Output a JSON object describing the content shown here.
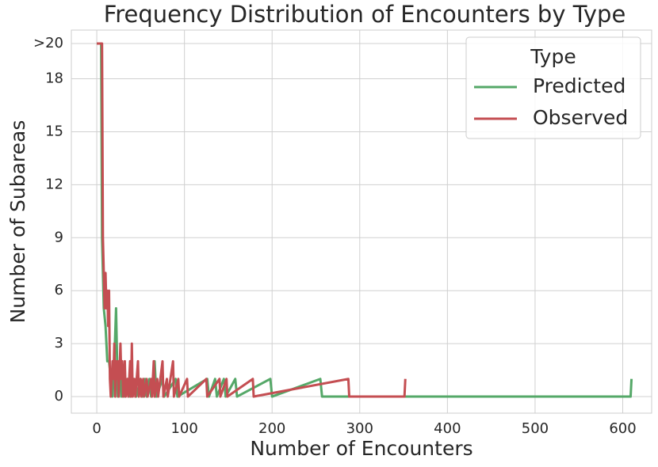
{
  "chart_data": {
    "type": "line",
    "title": "Frequency Distribution of Encounters by Type",
    "xlabel": "Number of Encounters",
    "ylabel": "Number of Subareas",
    "xlim": [
      -29,
      633
    ],
    "ylim": [
      -0.94,
      20.76
    ],
    "xticks": [
      0,
      100,
      200,
      300,
      400,
      500,
      600
    ],
    "yticks": [
      0,
      3,
      6,
      9,
      12,
      15,
      18,
      {
        "value": 20,
        "label": ">20"
      }
    ],
    "grid": true,
    "legend_title": "Type",
    "legend_position": "upper right",
    "series": [
      {
        "name": "Predicted",
        "color": "#55a868",
        "x": [
          0,
          5,
          6,
          8,
          10,
          12,
          14,
          16,
          18,
          20,
          22,
          24,
          26,
          28,
          30,
          32,
          35,
          38,
          42,
          45,
          50,
          52,
          55,
          57,
          60,
          62,
          66,
          68,
          75,
          77,
          90,
          92,
          126,
          128,
          135,
          137,
          145,
          147,
          158,
          160,
          198,
          200,
          255,
          257,
          609,
          610
        ],
        "values": [
          20,
          20,
          9,
          5,
          4,
          2,
          2,
          1,
          0,
          2,
          5,
          0,
          2,
          0,
          1,
          0,
          1,
          0,
          1,
          0,
          1,
          0,
          1,
          0,
          1,
          0,
          2,
          0,
          1,
          0,
          1,
          0,
          1,
          0,
          1,
          0,
          1,
          0,
          1,
          0,
          1,
          0,
          1,
          0,
          0,
          1
        ]
      },
      {
        "name": "Observed",
        "color": "#c44e52",
        "x": [
          0,
          6,
          7,
          9,
          10,
          11,
          12,
          13,
          14,
          15,
          16,
          18,
          19,
          20,
          21,
          22,
          23,
          24,
          25,
          27,
          28,
          29,
          30,
          32,
          33,
          35,
          36,
          38,
          39,
          40,
          41,
          43,
          44,
          47,
          48,
          50,
          51,
          53,
          54,
          57,
          58,
          62,
          63,
          65,
          66,
          69,
          70,
          75,
          76,
          80,
          81,
          87,
          88,
          93,
          94,
          103,
          104,
          125,
          126,
          140,
          141,
          148,
          149,
          178,
          179,
          287,
          288,
          351,
          352
        ],
        "values": [
          20,
          20,
          9,
          5,
          7,
          5,
          6,
          4,
          6,
          1,
          0,
          2,
          1,
          3,
          0,
          2,
          1,
          2,
          0,
          3,
          1,
          2,
          0,
          2,
          0,
          1,
          0,
          2,
          0,
          3,
          0,
          1,
          0,
          2,
          0,
          1,
          0,
          1,
          0,
          1,
          0,
          1,
          0,
          2,
          0,
          1,
          0,
          2,
          0,
          1,
          0,
          2,
          0,
          1,
          0,
          1,
          0,
          1,
          0,
          1,
          0,
          1,
          0,
          1,
          0,
          1,
          0,
          0,
          1
        ]
      }
    ]
  }
}
